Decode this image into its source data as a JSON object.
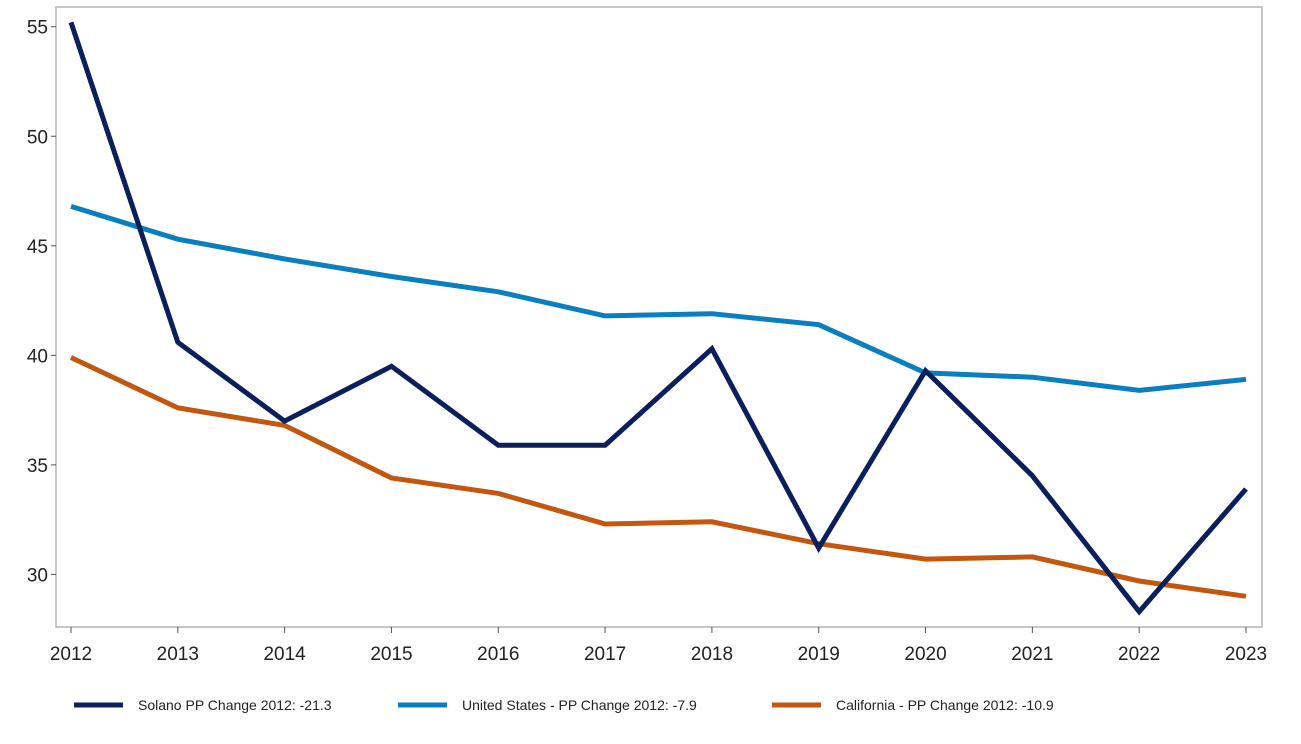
{
  "chart_data": {
    "type": "line",
    "title": "",
    "xlabel": "",
    "ylabel": "",
    "x": [
      "2012",
      "2013",
      "2014",
      "2015",
      "2016",
      "2017",
      "2018",
      "2019",
      "2020",
      "2021",
      "2022",
      "2023"
    ],
    "ylim": [
      27.6,
      55.9
    ],
    "yticks": [
      30,
      35,
      40,
      45,
      50,
      55
    ],
    "grid": false,
    "legend_position": "bottom",
    "series": [
      {
        "name": "Solano PP Change 2012: -21.3",
        "color": "#0b1f5c",
        "values": [
          55.2,
          40.6,
          37.0,
          39.5,
          35.9,
          35.9,
          40.3,
          31.2,
          39.3,
          34.5,
          28.3,
          33.9
        ]
      },
      {
        "name": "United States - PP Change 2012: -7.9",
        "color": "#0a7fbf",
        "values": [
          46.8,
          45.3,
          44.4,
          43.6,
          42.9,
          41.8,
          41.9,
          41.4,
          39.2,
          39.0,
          38.4,
          38.9
        ]
      },
      {
        "name": "California - PP Change 2012: -10.9",
        "color": "#c4570f",
        "values": [
          39.9,
          37.6,
          36.8,
          34.4,
          33.7,
          32.3,
          32.4,
          31.4,
          30.7,
          30.8,
          29.7,
          29.0
        ]
      }
    ]
  }
}
